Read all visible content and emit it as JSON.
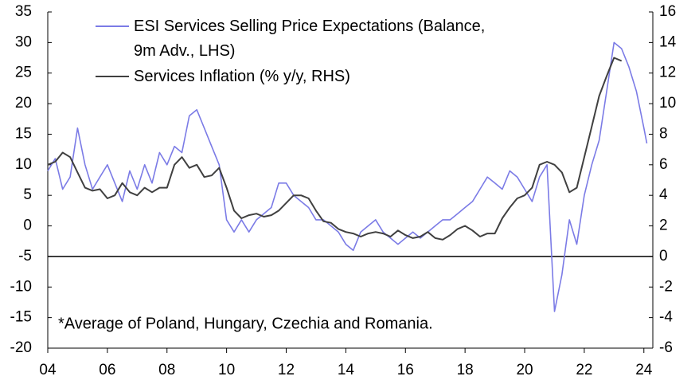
{
  "chart_data": {
    "type": "line",
    "x": [
      2004,
      2004.25,
      2004.5,
      2004.75,
      2005,
      2005.25,
      2005.5,
      2005.75,
      2006,
      2006.25,
      2006.5,
      2006.75,
      2007,
      2007.25,
      2007.5,
      2007.75,
      2008,
      2008.25,
      2008.5,
      2008.75,
      2009,
      2009.25,
      2009.5,
      2009.75,
      2010,
      2010.25,
      2010.5,
      2010.75,
      2011,
      2011.25,
      2011.5,
      2011.75,
      2012,
      2012.25,
      2012.5,
      2012.75,
      2013,
      2013.25,
      2013.5,
      2013.75,
      2014,
      2014.25,
      2014.5,
      2014.75,
      2015,
      2015.25,
      2015.5,
      2015.75,
      2016,
      2016.25,
      2016.5,
      2016.75,
      2017,
      2017.25,
      2017.5,
      2017.75,
      2018,
      2018.25,
      2018.5,
      2018.75,
      2019,
      2019.25,
      2019.5,
      2019.75,
      2020,
      2020.25,
      2020.5,
      2020.75,
      2021,
      2021.25,
      2021.5,
      2021.75,
      2022,
      2022.25,
      2022.5,
      2022.75,
      2023,
      2023.25,
      2023.5,
      2023.75,
      2024,
      2024.1
    ],
    "series": [
      {
        "name": "ESI Services Selling Price Expectations (Balance, 9m Adv., LHS)",
        "color": "#7b7be6",
        "values": [
          9,
          11,
          6,
          8,
          16,
          10,
          6,
          8,
          10,
          7,
          4,
          9,
          6,
          10,
          7,
          12,
          10,
          13,
          12,
          18,
          19,
          16,
          13,
          10,
          1,
          -1,
          1,
          -1,
          1,
          2,
          3,
          7,
          7,
          5,
          4,
          3,
          1,
          1,
          0,
          -1,
          -3,
          -4,
          -1,
          0,
          1,
          -1,
          -2,
          -3,
          -2,
          -1,
          -2,
          -1,
          0,
          1,
          1,
          2,
          3,
          4,
          6,
          8,
          7,
          6,
          9,
          8,
          6,
          4,
          8,
          10,
          -14,
          -8,
          1,
          -3,
          5,
          10,
          14,
          22,
          30,
          29,
          26,
          22,
          16,
          13.5
        ]
      },
      {
        "name": "Services Inflation (% y/y, RHS)",
        "color": "#404040",
        "axis": "y2",
        "values": [
          6.0,
          6.2,
          6.8,
          6.5,
          5.5,
          4.5,
          4.3,
          4.4,
          3.8,
          4.0,
          4.8,
          4.2,
          4.0,
          4.5,
          4.2,
          4.5,
          4.5,
          6.0,
          6.5,
          5.8,
          6.0,
          5.2,
          5.3,
          5.8,
          4.5,
          3.0,
          2.5,
          2.7,
          2.8,
          2.6,
          2.7,
          3.0,
          3.5,
          4.0,
          4.0,
          3.8,
          3.0,
          2.3,
          2.2,
          1.8,
          1.6,
          1.5,
          1.3,
          1.5,
          1.6,
          1.5,
          1.3,
          1.7,
          1.4,
          1.2,
          1.3,
          1.6,
          1.2,
          1.1,
          1.4,
          1.8,
          2.0,
          1.7,
          1.3,
          1.5,
          1.5,
          2.5,
          3.2,
          3.8,
          4.0,
          4.5,
          6.0,
          6.2,
          6.0,
          5.5,
          4.2,
          4.5,
          6.5,
          8.5,
          10.5,
          11.8,
          13.0,
          12.8,
          null,
          null,
          null,
          null
        ]
      }
    ],
    "xlim": [
      2004,
      2024.3
    ],
    "xticks": [
      {
        "value": 2004,
        "label": "04"
      },
      {
        "value": 2006,
        "label": "06"
      },
      {
        "value": 2008,
        "label": "08"
      },
      {
        "value": 2010,
        "label": "10"
      },
      {
        "value": 2012,
        "label": "12"
      },
      {
        "value": 2014,
        "label": "14"
      },
      {
        "value": 2016,
        "label": "16"
      },
      {
        "value": 2018,
        "label": "18"
      },
      {
        "value": 2020,
        "label": "20"
      },
      {
        "value": 2022,
        "label": "22"
      },
      {
        "value": 2024,
        "label": "24"
      }
    ],
    "ylim": [
      -20,
      35
    ],
    "yticks": [
      -20,
      -15,
      -10,
      -5,
      0,
      5,
      10,
      15,
      20,
      25,
      30,
      35
    ],
    "y2lim": [
      -6,
      16
    ],
    "y2ticks": [
      -6,
      -4,
      -2,
      0,
      2,
      4,
      6,
      8,
      10,
      12,
      14,
      16
    ],
    "annotation": "*Average of Poland, Hungary, Czechia and Romania."
  }
}
